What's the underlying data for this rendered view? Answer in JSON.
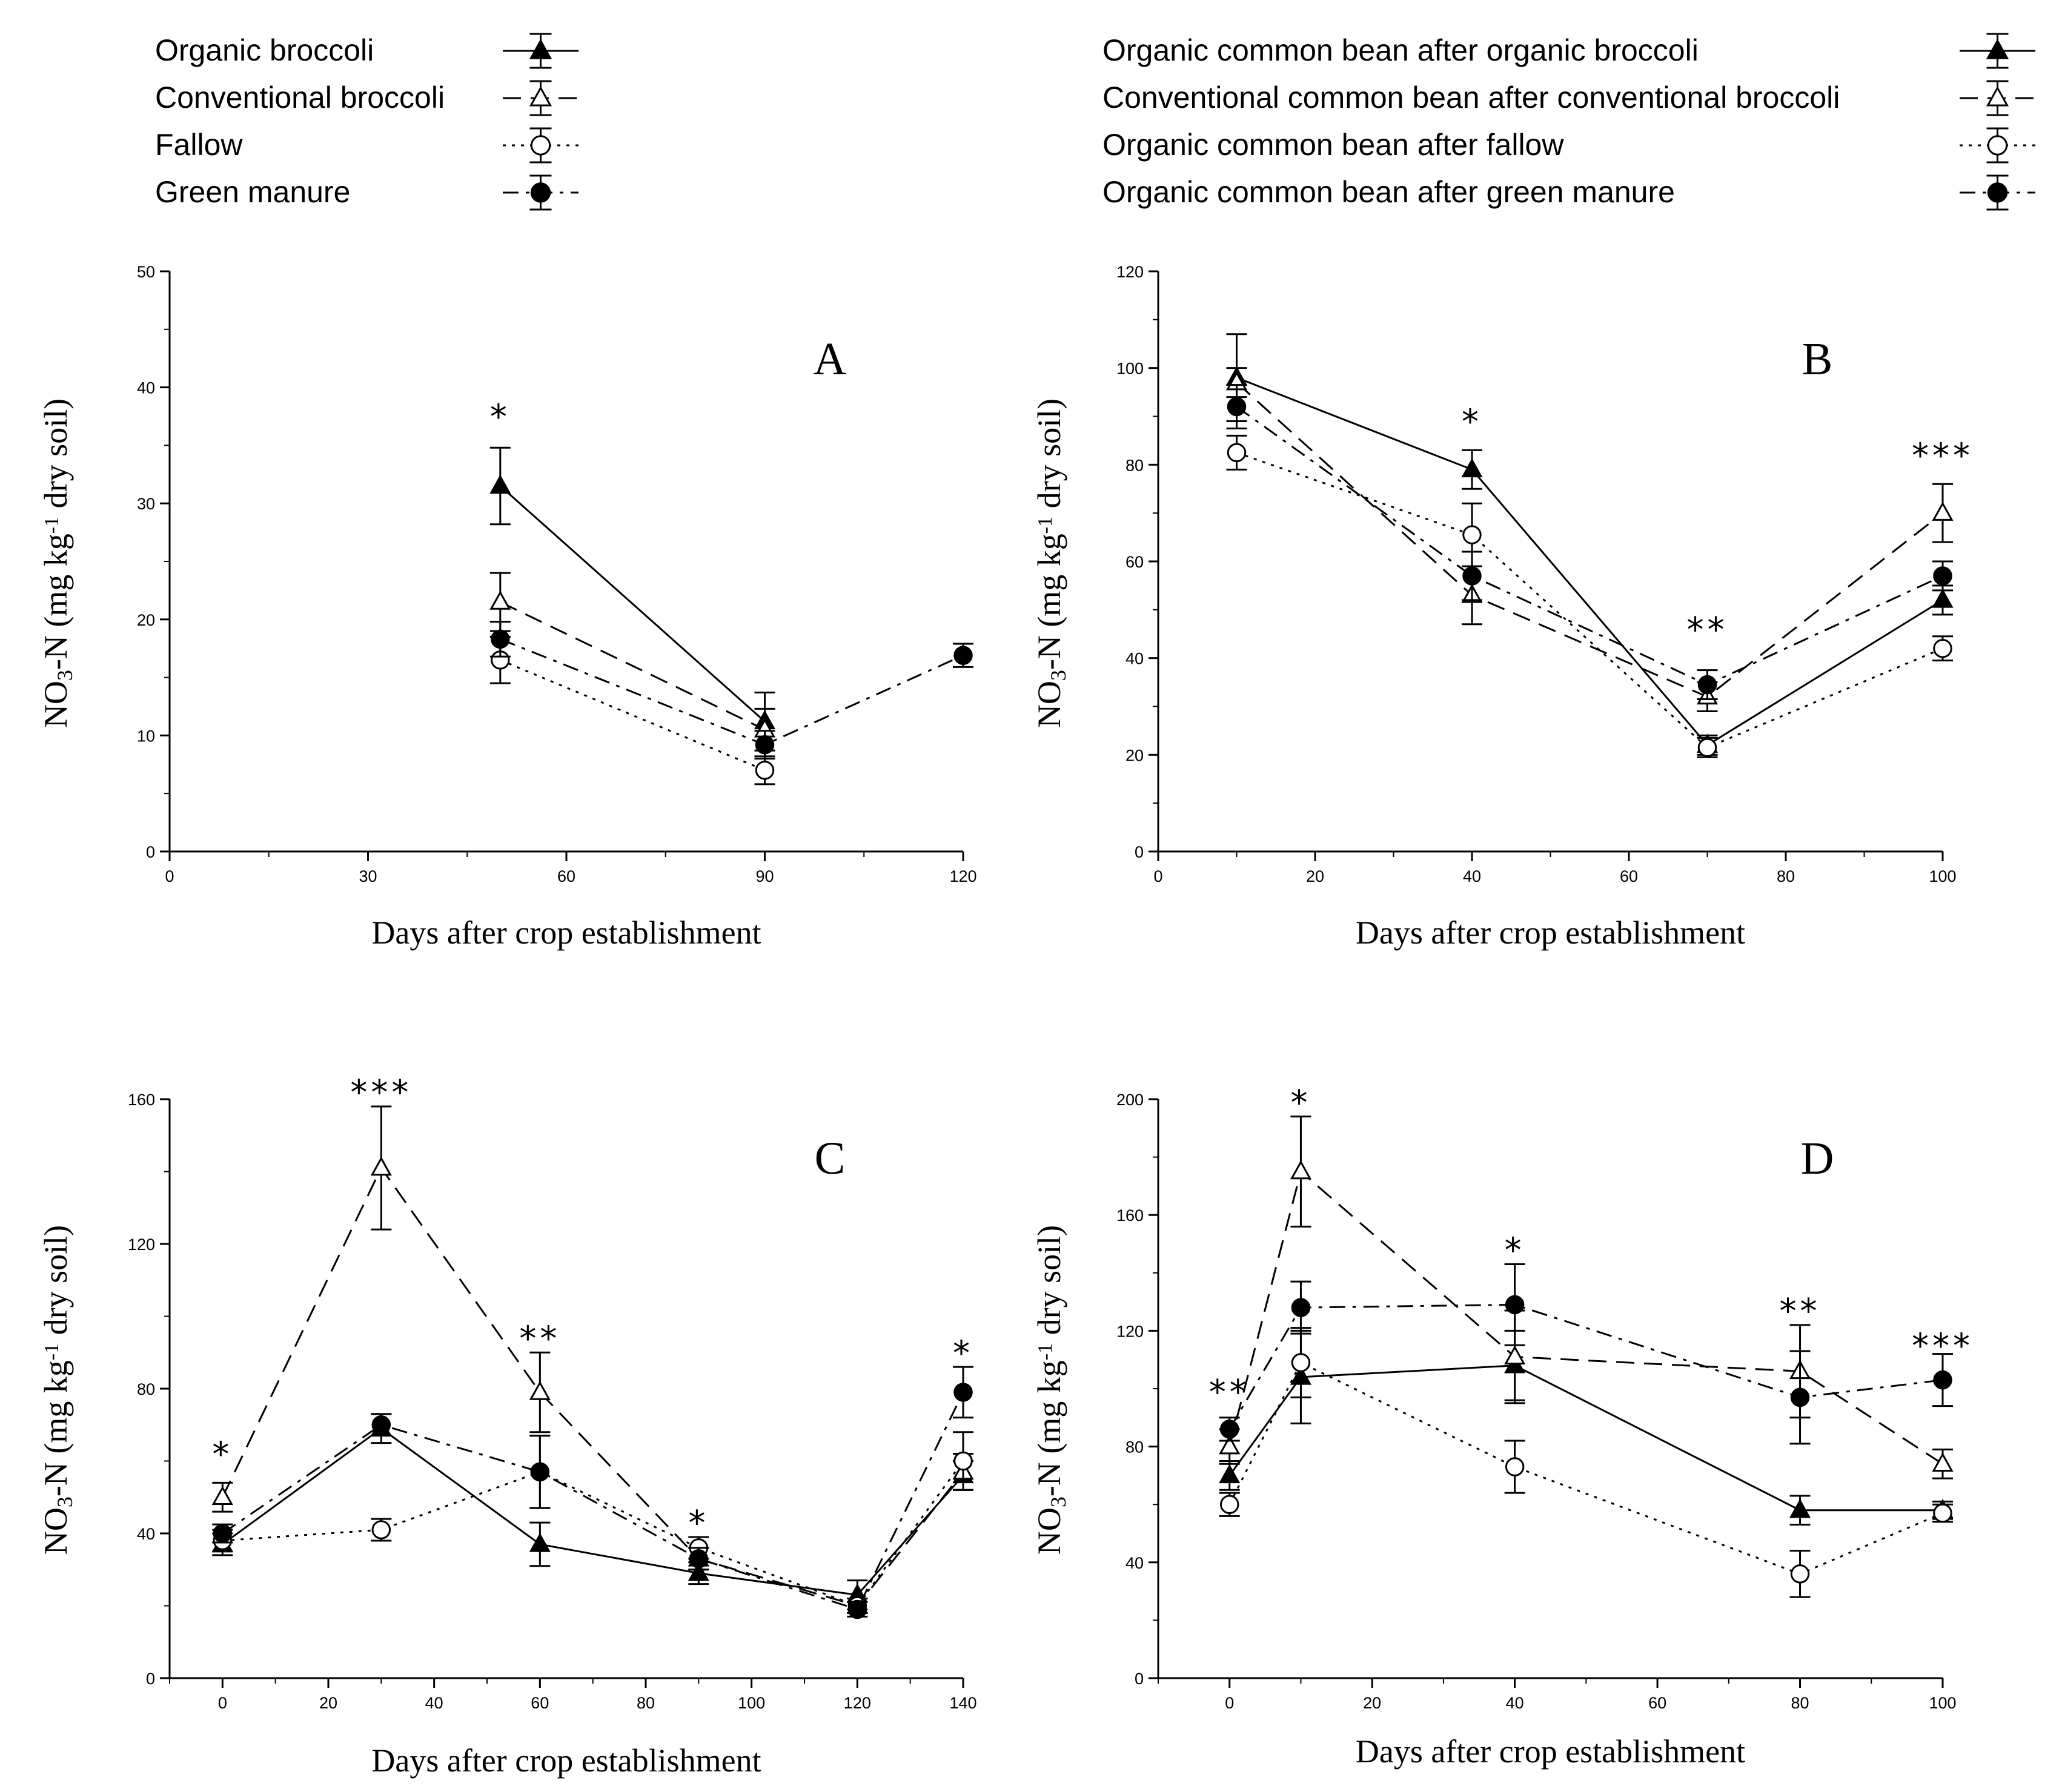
{
  "legend_left": [
    {
      "label": "Organic broccoli",
      "style": "solid",
      "marker": "triangle-filled"
    },
    {
      "label": "Conventional broccoli",
      "style": "dashed",
      "marker": "triangle-open"
    },
    {
      "label": "Fallow",
      "style": "dotted",
      "marker": "circle-open"
    },
    {
      "label": "Green manure",
      "style": "dashdot",
      "marker": "circle-filled"
    }
  ],
  "legend_right": [
    {
      "label": "Organic common bean after organic broccoli",
      "style": "solid",
      "marker": "triangle-filled"
    },
    {
      "label": "Conventional common bean after conventional broccoli",
      "style": "dashed",
      "marker": "triangle-open"
    },
    {
      "label": "Organic common bean after fallow",
      "style": "dotted",
      "marker": "circle-open"
    },
    {
      "label": "Organic common bean after green manure",
      "style": "dashdot",
      "marker": "circle-filled"
    }
  ],
  "chart_data": [
    {
      "type": "line",
      "panel": "A",
      "xlabel": "Days after crop establishment",
      "ylabel_main": "NO",
      "ylabel_sub": "3",
      "ylabel_mid": "-N (mg kg",
      "ylabel_sup": "-1",
      "ylabel_end": " dry soil)",
      "xlim": [
        0,
        120
      ],
      "ylim": [
        0,
        50
      ],
      "xticks": [
        0,
        30,
        60,
        90,
        120
      ],
      "yticks": [
        0,
        10,
        20,
        30,
        40,
        50
      ],
      "xminor": 2,
      "yminor": 2,
      "series": [
        {
          "name": "Organic broccoli",
          "style": "solid",
          "marker": "triangle-filled",
          "x": [
            50,
            90
          ],
          "y": [
            31.5,
            11.2
          ],
          "err": [
            3.3,
            2.5
          ]
        },
        {
          "name": "Conventional broccoli",
          "style": "dashed",
          "marker": "triangle-open",
          "x": [
            50,
            90
          ],
          "y": [
            21.5,
            10.5
          ],
          "err": [
            2.5,
            1.8
          ]
        },
        {
          "name": "Fallow",
          "style": "dotted",
          "marker": "circle-open",
          "x": [
            50,
            90
          ],
          "y": [
            16.5,
            7.0
          ],
          "err": [
            2.0,
            1.2
          ]
        },
        {
          "name": "Green manure",
          "style": "dashdot",
          "marker": "circle-filled",
          "x": [
            50,
            90,
            120
          ],
          "y": [
            18.3,
            9.2,
            16.9
          ],
          "err": [
            1.5,
            1.2,
            1.0
          ]
        }
      ],
      "annotations": [
        {
          "x": 50,
          "y": 37.5,
          "text": "*"
        }
      ]
    },
    {
      "type": "line",
      "panel": "B",
      "xlabel": "Days after crop establishment",
      "ylabel_main": "NO",
      "ylabel_sub": "3",
      "ylabel_mid": "-N (mg kg",
      "ylabel_sup": "-1",
      "ylabel_end": " dry soil)",
      "xlim": [
        0,
        100
      ],
      "ylim": [
        0,
        120
      ],
      "xticks": [
        0,
        20,
        40,
        60,
        80,
        100
      ],
      "yticks": [
        0,
        20,
        40,
        60,
        80,
        100,
        120
      ],
      "xminor": 2,
      "yminor": 2,
      "series": [
        {
          "name": "Organic common bean after organic broccoli",
          "style": "solid",
          "marker": "triangle-filled",
          "x": [
            10,
            40,
            70,
            100
          ],
          "y": [
            98,
            79,
            22,
            52
          ],
          "err": [
            9,
            4,
            2,
            3
          ]
        },
        {
          "name": "Conventional common bean after conventional broccoli",
          "style": "dashed",
          "marker": "triangle-open",
          "x": [
            10,
            40,
            70,
            100
          ],
          "y": [
            97,
            53,
            32,
            70
          ],
          "err": [
            3,
            6,
            3,
            6
          ]
        },
        {
          "name": "Organic common bean after fallow",
          "style": "dotted",
          "marker": "circle-open",
          "x": [
            10,
            40,
            70,
            100
          ],
          "y": [
            82.5,
            65.5,
            21.5,
            42
          ],
          "err": [
            3.5,
            6.5,
            2,
            2.5
          ]
        },
        {
          "name": "Organic common bean after green manure",
          "style": "dashdot",
          "marker": "circle-filled",
          "x": [
            10,
            40,
            70,
            100
          ],
          "y": [
            92,
            57,
            34.5,
            57
          ],
          "err": [
            4.5,
            5,
            3,
            3
          ]
        }
      ],
      "annotations": [
        {
          "x": 40,
          "y": 89,
          "text": "*"
        },
        {
          "x": 70,
          "y": 46,
          "text": "**"
        },
        {
          "x": 100,
          "y": 82,
          "text": "***"
        }
      ]
    },
    {
      "type": "line",
      "panel": "C",
      "xlabel": "Days after crop establishment",
      "ylabel_main": "NO",
      "ylabel_sub": "3",
      "ylabel_mid": "-N (mg kg",
      "ylabel_sup": "-1",
      "ylabel_end": " dry soil)",
      "xlim": [
        -10,
        140
      ],
      "ylim": [
        0,
        160
      ],
      "xticks": [
        0,
        20,
        40,
        60,
        80,
        100,
        120,
        140
      ],
      "yticks": [
        0,
        40,
        80,
        120,
        160
      ],
      "xminor": 2,
      "yminor": 2,
      "series": [
        {
          "name": "Organic broccoli",
          "style": "solid",
          "marker": "triangle-filled",
          "x": [
            0,
            30,
            60,
            90,
            120,
            140
          ],
          "y": [
            37,
            69,
            37,
            29,
            23,
            56
          ],
          "err": [
            3,
            4,
            6,
            3,
            4,
            4
          ]
        },
        {
          "name": "Conventional broccoli",
          "style": "dashed",
          "marker": "triangle-open",
          "x": [
            0,
            30,
            60,
            90,
            120,
            140
          ],
          "y": [
            50,
            141,
            79,
            33,
            20,
            57
          ],
          "err": [
            4,
            17,
            11,
            3,
            2,
            5
          ]
        },
        {
          "name": "Fallow",
          "style": "dotted",
          "marker": "circle-open",
          "x": [
            0,
            30,
            60,
            90,
            120,
            140
          ],
          "y": [
            38,
            41,
            57,
            36,
            20,
            60
          ],
          "err": [
            3,
            3,
            10,
            3,
            2,
            8
          ]
        },
        {
          "name": "Green manure",
          "style": "dashdot",
          "marker": "circle-filled",
          "x": [
            0,
            30,
            60,
            90,
            120,
            140
          ],
          "y": [
            40,
            70,
            57,
            33,
            19,
            79
          ],
          "err": [
            2.5,
            3,
            10,
            3,
            2,
            7
          ]
        }
      ],
      "annotations": [
        {
          "x": 0,
          "y": 62,
          "text": "*"
        },
        {
          "x": 30,
          "y": 162,
          "text": "***"
        },
        {
          "x": 60,
          "y": 94,
          "text": "**"
        },
        {
          "x": 90,
          "y": 43,
          "text": "*"
        },
        {
          "x": 140,
          "y": 90,
          "text": "*"
        }
      ]
    },
    {
      "type": "line",
      "panel": "D",
      "xlabel": "Days after crop establishment",
      "ylabel_main": "NO",
      "ylabel_sub": "3",
      "ylabel_mid": "-N (mg kg",
      "ylabel_sup": "-1",
      "ylabel_end": " dry soil)",
      "xlim": [
        -10,
        100
      ],
      "ylim": [
        0,
        200
      ],
      "xticks": [
        0,
        20,
        40,
        60,
        80,
        100
      ],
      "yticks": [
        0,
        40,
        80,
        120,
        160,
        200
      ],
      "xminor": 2,
      "yminor": 2,
      "series": [
        {
          "name": "Organic common bean after organic broccoli",
          "style": "solid",
          "marker": "triangle-filled",
          "x": [
            0,
            10,
            40,
            80,
            100
          ],
          "y": [
            70,
            104,
            108,
            58,
            58
          ],
          "err": [
            5,
            16,
            12,
            5,
            3
          ]
        },
        {
          "name": "Conventional common bean after conventional broccoli",
          "style": "dashed",
          "marker": "triangle-open",
          "x": [
            0,
            10,
            40,
            80,
            100
          ],
          "y": [
            80,
            175,
            111,
            106,
            74
          ],
          "err": [
            6,
            19,
            16,
            16,
            5
          ]
        },
        {
          "name": "Organic common bean after fallow",
          "style": "dotted",
          "marker": "circle-open",
          "x": [
            0,
            10,
            40,
            80,
            100
          ],
          "y": [
            60,
            109,
            73,
            36,
            57
          ],
          "err": [
            4,
            12,
            9,
            8,
            3
          ]
        },
        {
          "name": "Organic common bean after green manure",
          "style": "dashdot",
          "marker": "circle-filled",
          "x": [
            0,
            10,
            40,
            80,
            100
          ],
          "y": [
            86,
            128,
            129,
            97,
            103
          ],
          "err": [
            4,
            9,
            14,
            16,
            9
          ]
        }
      ],
      "annotations": [
        {
          "x": 0,
          "y": 99,
          "text": "**"
        },
        {
          "x": 10,
          "y": 199,
          "text": "*"
        },
        {
          "x": 40,
          "y": 148,
          "text": "*"
        },
        {
          "x": 80,
          "y": 127,
          "text": "**"
        },
        {
          "x": 100,
          "y": 115,
          "text": "***"
        }
      ]
    }
  ]
}
